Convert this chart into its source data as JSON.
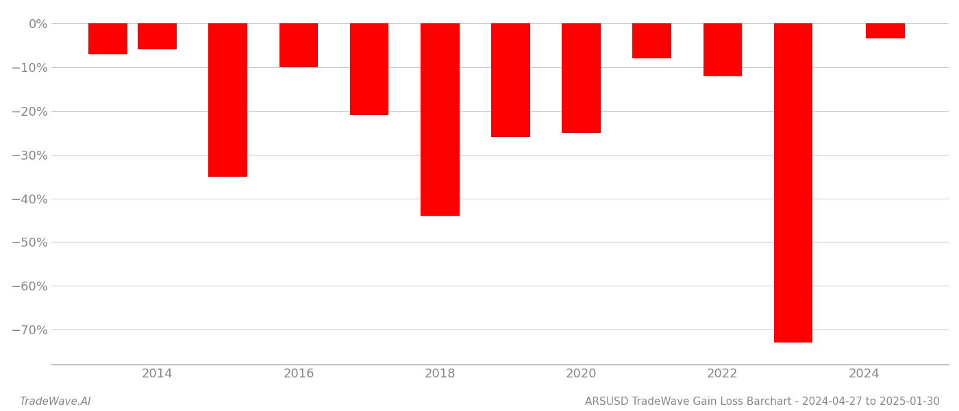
{
  "years": [
    2013.3,
    2014.0,
    2015.0,
    2016.0,
    2017.0,
    2018.0,
    2019.0,
    2020.0,
    2021.0,
    2022.0,
    2023.0,
    2024.3
  ],
  "values": [
    -7.0,
    -6.0,
    -35.0,
    -10.0,
    -21.0,
    -44.0,
    -26.0,
    -25.0,
    -8.0,
    -12.0,
    -73.0,
    -3.5
  ],
  "bar_color": "#ff0000",
  "background_color": "#ffffff",
  "grid_color": "#cccccc",
  "axis_label_color": "#888888",
  "ylim": [
    -78,
    3
  ],
  "yticks": [
    0,
    -10,
    -20,
    -30,
    -40,
    -50,
    -60,
    -70
  ],
  "ytick_labels": [
    "0%",
    "−10%",
    "−20%",
    "−30%",
    "−40%",
    "−50%",
    "−60%",
    "−70%"
  ],
  "xlim": [
    2012.5,
    2025.2
  ],
  "xtick_years": [
    2014,
    2016,
    2018,
    2020,
    2022,
    2024
  ],
  "title": "ARSUSD TradeWave Gain Loss Barchart - 2024-04-27 to 2025-01-30",
  "watermark": "TradeWave.AI",
  "bar_width": 0.55
}
